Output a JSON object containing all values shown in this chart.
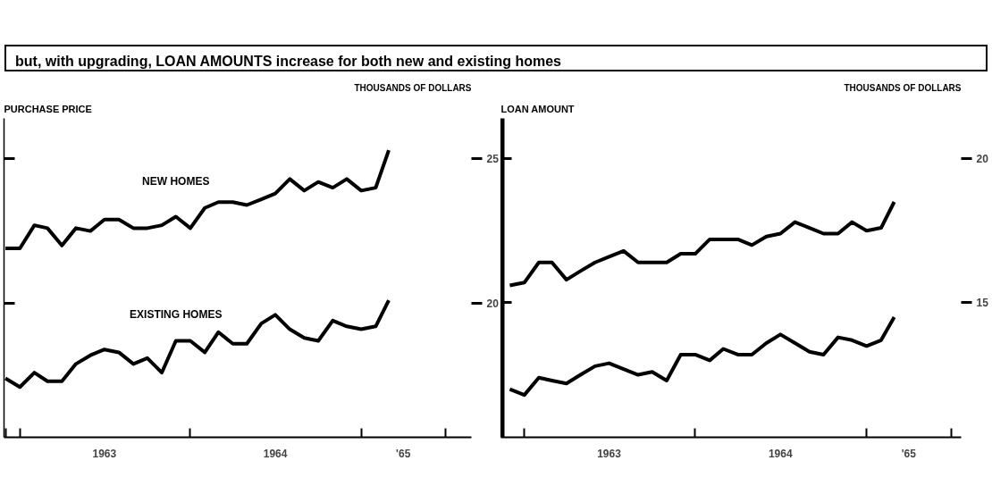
{
  "chart_data": [
    {
      "type": "line",
      "title": "but, with upgrading, LOAN AMOUNTS increase for both new and existing homes",
      "subtitle": "PURCHASE PRICE",
      "ylabel": "THOUSANDS OF DOLLARS",
      "x": [
        "1962-12",
        "1963-01",
        "1963-02",
        "1963-03",
        "1963-04",
        "1963-05",
        "1963-06",
        "1963-07",
        "1963-08",
        "1963-09",
        "1963-10",
        "1963-11",
        "1963-12",
        "1964-01",
        "1964-02",
        "1964-03",
        "1964-04",
        "1964-05",
        "1964-06",
        "1964-07",
        "1964-08",
        "1964-09",
        "1964-10",
        "1964-11",
        "1964-12",
        "1965-01",
        "1965-02",
        "1965-03"
      ],
      "series": [
        {
          "name": "NEW HOMES",
          "color": "#000000",
          "values": [
            21.9,
            21.9,
            22.7,
            22.6,
            22.0,
            22.6,
            22.5,
            22.9,
            22.9,
            22.6,
            22.6,
            22.7,
            23.0,
            22.6,
            23.3,
            23.5,
            23.5,
            23.4,
            23.6,
            23.8,
            24.3,
            23.9,
            24.2,
            24.0,
            24.3,
            23.9,
            24.0,
            25.3
          ]
        },
        {
          "name": "EXISTING HOMES",
          "color": "#000000",
          "values": [
            17.4,
            17.1,
            17.6,
            17.3,
            17.3,
            17.9,
            18.2,
            18.4,
            18.3,
            17.9,
            18.1,
            17.6,
            18.7,
            18.7,
            18.3,
            19.0,
            18.6,
            18.6,
            19.3,
            19.6,
            19.1,
            18.8,
            18.7,
            19.4,
            19.2,
            19.1,
            19.2,
            20.1
          ]
        }
      ],
      "xlim": [
        "1962-11-28",
        "1965-08-25"
      ],
      "xticks": [
        {
          "value": "1962-12",
          "label": null
        },
        {
          "value": "1963-01",
          "label": null
        },
        {
          "value": "1963-07",
          "label": "1963"
        },
        {
          "value": "1964-01",
          "label": null
        },
        {
          "value": "1964-07",
          "label": "1964"
        },
        {
          "value": "1965-01",
          "label": null
        },
        {
          "value": "1965-04",
          "label": "'65"
        },
        {
          "value": "1965-07",
          "label": null
        }
      ],
      "ylim": [
        15.36,
        26.4
      ],
      "yticks": [
        20,
        25
      ],
      "grid": false,
      "legend": false,
      "line_style": "solid"
    },
    {
      "type": "line",
      "subtitle": "LOAN AMOUNT",
      "ylabel": "THOUSANDS OF DOLLARS",
      "x": [
        "1962-12",
        "1963-01",
        "1963-02",
        "1963-03",
        "1963-04",
        "1963-05",
        "1963-06",
        "1963-07",
        "1963-08",
        "1963-09",
        "1963-10",
        "1963-11",
        "1963-12",
        "1964-01",
        "1964-02",
        "1964-03",
        "1964-04",
        "1964-05",
        "1964-06",
        "1964-07",
        "1964-08",
        "1964-09",
        "1964-10",
        "1964-11",
        "1964-12",
        "1965-01",
        "1965-02",
        "1965-03"
      ],
      "series": [
        {
          "color": "#000000",
          "values": [
            15.6,
            15.7,
            16.4,
            16.4,
            15.8,
            16.1,
            16.4,
            16.6,
            16.8,
            16.4,
            16.4,
            16.4,
            16.7,
            16.7,
            17.2,
            17.2,
            17.2,
            17.0,
            17.3,
            17.4,
            17.8,
            17.6,
            17.4,
            17.4,
            17.8,
            17.5,
            17.6,
            18.5
          ]
        },
        {
          "color": "#000000",
          "values": [
            12.0,
            11.8,
            12.4,
            12.3,
            12.2,
            12.5,
            12.8,
            12.9,
            12.7,
            12.5,
            12.6,
            12.3,
            13.2,
            13.2,
            13.0,
            13.4,
            13.2,
            13.2,
            13.6,
            13.9,
            13.6,
            13.3,
            13.2,
            13.8,
            13.7,
            13.5,
            13.7,
            14.5
          ]
        }
      ],
      "xlim": [
        "1962-11-12",
        "1965-07-22"
      ],
      "xticks": [
        {
          "value": "1963-01",
          "label": null
        },
        {
          "value": "1963-07",
          "label": "1963"
        },
        {
          "value": "1964-01",
          "label": null
        },
        {
          "value": "1964-07",
          "label": "1964"
        },
        {
          "value": "1965-01",
          "label": null
        },
        {
          "value": "1965-04",
          "label": "'65"
        },
        {
          "value": "1965-07",
          "label": null
        }
      ],
      "ylim": [
        10.33,
        21.4
      ],
      "yticks": [
        15,
        20
      ],
      "grid": false,
      "legend": false,
      "line_style": "solid"
    }
  ]
}
